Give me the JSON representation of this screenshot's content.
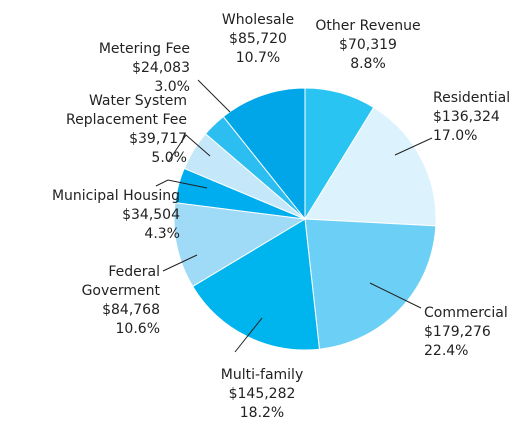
{
  "chart_data": {
    "type": "pie",
    "categories": [
      [
        "Other Revenue"
      ],
      [
        "Residential"
      ],
      [
        "Commercial"
      ],
      [
        "Multi-family"
      ],
      [
        "Federal",
        "Goverment"
      ],
      [
        "Municipal Housing"
      ],
      [
        "Water System",
        "Replacement Fee"
      ],
      [
        "Metering Fee"
      ],
      [
        "Wholesale"
      ]
    ],
    "values": [
      70319,
      136324,
      179276,
      145282,
      84768,
      34504,
      39717,
      24083,
      85720
    ],
    "value_labels": [
      "$70,319",
      "$136,324",
      "$179,276",
      "$145,282",
      "$84,768",
      "$34,504",
      "$39,717",
      "$24,083",
      "$85,720"
    ],
    "percent_labels": [
      "8.8%",
      "17.0%",
      "22.4%",
      "18.2%",
      "10.6%",
      "4.3%",
      "5.0%",
      "3.0%",
      "10.7%"
    ],
    "colors": [
      "#29c4f2",
      "#dcf2fc",
      "#6ccff5",
      "#00b4ee",
      "#9fdaf7",
      "#00aeef",
      "#c4e8fa",
      "#2cbef0",
      "#00a6e8"
    ]
  }
}
